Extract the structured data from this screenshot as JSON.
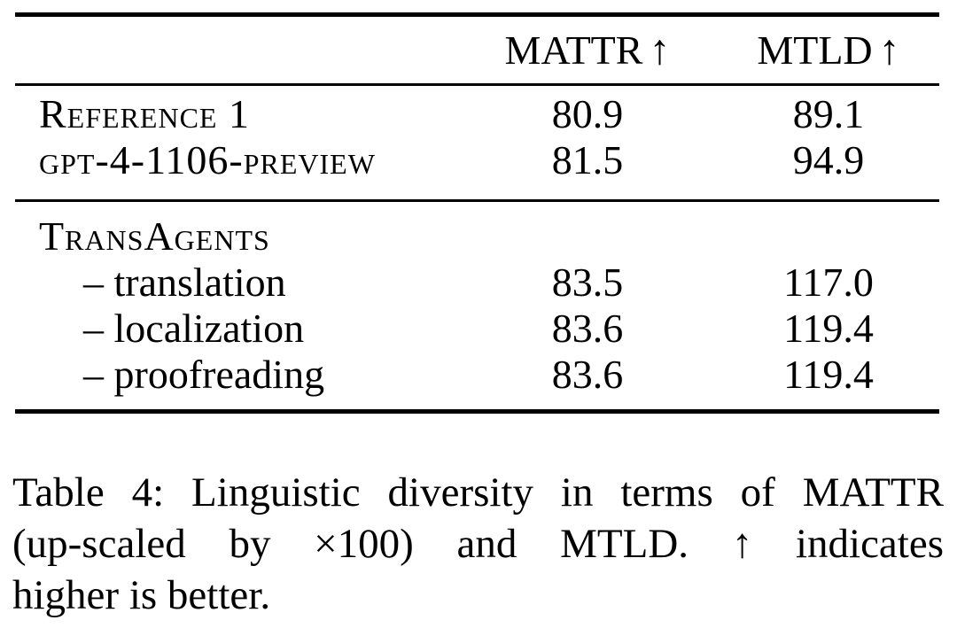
{
  "figure": {
    "table": {
      "headers": [
        {
          "label": "MATTR",
          "arrow": "↑"
        },
        {
          "label": "MTLD",
          "arrow": "↑"
        }
      ],
      "sections": [
        {
          "rows": [
            {
              "label": "Reference 1",
              "mattr": "80.9",
              "mtld": "89.1"
            },
            {
              "label": "gpt-4-1106-preview",
              "mattr": "81.5",
              "mtld": "94.9"
            }
          ]
        },
        {
          "group_label": "TransAgents",
          "rows": [
            {
              "label": "– translation",
              "mattr": "83.5",
              "mtld": "117.0"
            },
            {
              "label": "– localization",
              "mattr": "83.6",
              "mtld": "119.4"
            },
            {
              "label": "– proofreading",
              "mattr": "83.6",
              "mtld": "119.4"
            }
          ]
        }
      ]
    },
    "caption": {
      "lines": [
        "Table 4: Linguistic diversity in terms of MATTR",
        "(up-scaled by ×100) and MTLD. ↑ indicates",
        "higher is better."
      ],
      "text": "Table 4: Linguistic diversity in terms of MATTR (up-scaled by ×100) and MTLD. ↑ indicates higher is better."
    },
    "colors": {
      "background": "#ffffff",
      "text": "#000000",
      "rule": "#000000"
    }
  }
}
